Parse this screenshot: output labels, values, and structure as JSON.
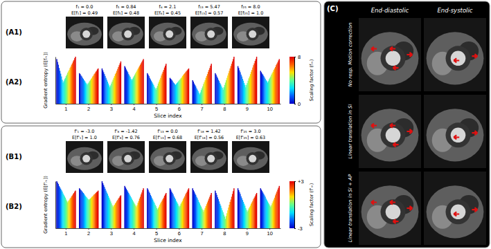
{
  "figure": {
    "panel_labels": [
      "(A1)",
      "(A2)",
      "(B1)",
      "(B2)",
      "(C)"
    ],
    "a1_images": [
      {
        "f": "f₁ = 0.0",
        "e": "E[f₁] = 0.49"
      },
      {
        "f": "f₅ = 0.84",
        "e": "E[f₅] = 0.48"
      },
      {
        "f": "f₆ = 2.1",
        "e": "E[f₆] = 0.45"
      },
      {
        "f": "f₁₃ = 5.47",
        "e": "E[f₁₃] = 0.57"
      },
      {
        "f": "f₂₅ = 8.0",
        "e": "E[f₂₅] = 1.0"
      }
    ],
    "b1_images": [
      {
        "f": "f'₁ = -3.0",
        "e": "E[f'₁] = 1.0"
      },
      {
        "f": "f'₈ = -1.42",
        "e": "E[f'₈] = 0.76"
      },
      {
        "f": "f'₁₃ = 0.0",
        "e": "E[f'₁₃] = 0.68"
      },
      {
        "f": "f'₁₈ = 1.42",
        "e": "E[f'₁₈] = 0.56"
      },
      {
        "f": "f'₂₅ = 3.0",
        "e": "E[f'₂₅] = 0.63"
      }
    ],
    "c": {
      "columns": [
        "End-diastolic",
        "End-systolic"
      ],
      "rows": [
        "No resp. Motion correction",
        "Linear translation in SI",
        "Linear translation in SI + AP"
      ]
    }
  },
  "chart_data": [
    {
      "type": "bar",
      "xlabel": "Slice index",
      "ylabel": "Gradient entropy (E[fₘ])",
      "categories": [
        1,
        2,
        3,
        4,
        5,
        6,
        7,
        8,
        9,
        10
      ],
      "ylim": [
        0,
        1
      ],
      "tick_labels": "x",
      "scaling_factors": [
        0,
        0.33,
        0.67,
        1,
        1.33,
        1.67,
        2,
        2.33,
        2.67,
        3,
        3.33,
        3.67,
        4,
        4.33,
        4.67,
        5,
        5.33,
        5.67,
        6,
        6.33,
        6.67,
        7,
        7.33,
        7.67,
        8
      ],
      "values": [
        [
          0.95,
          0.89,
          0.83,
          0.76,
          0.7,
          0.64,
          0.58,
          0.51,
          0.45,
          0.48,
          0.52,
          0.55,
          0.59,
          0.62,
          0.66,
          0.69,
          0.72,
          0.76,
          0.79,
          0.83,
          0.86,
          0.9,
          0.93,
          0.97,
          1.0
        ],
        [
          0.65,
          0.63,
          0.6,
          0.58,
          0.55,
          0.53,
          0.5,
          0.48,
          0.45,
          0.43,
          0.4,
          0.43,
          0.45,
          0.48,
          0.5,
          0.53,
          0.55,
          0.58,
          0.6,
          0.63,
          0.65,
          0.68,
          0.7,
          0.73,
          0.75
        ],
        [
          0.75,
          0.71,
          0.67,
          0.63,
          0.59,
          0.55,
          0.51,
          0.47,
          0.43,
          0.39,
          0.35,
          0.39,
          0.43,
          0.47,
          0.51,
          0.55,
          0.59,
          0.63,
          0.66,
          0.7,
          0.74,
          0.78,
          0.82,
          0.86,
          0.9
        ],
        [
          0.8,
          0.77,
          0.73,
          0.7,
          0.67,
          0.63,
          0.6,
          0.57,
          0.53,
          0.5,
          0.53,
          0.56,
          0.59,
          0.62,
          0.65,
          0.68,
          0.71,
          0.74,
          0.77,
          0.8,
          0.83,
          0.86,
          0.89,
          0.92,
          0.95
        ],
        [
          0.65,
          0.62,
          0.59,
          0.55,
          0.52,
          0.49,
          0.46,
          0.43,
          0.4,
          0.36,
          0.33,
          0.3,
          0.34,
          0.38,
          0.43,
          0.47,
          0.51,
          0.55,
          0.6,
          0.64,
          0.68,
          0.72,
          0.77,
          0.81,
          0.85
        ],
        [
          0.55,
          0.53,
          0.51,
          0.49,
          0.46,
          0.44,
          0.42,
          0.4,
          0.42,
          0.44,
          0.46,
          0.48,
          0.5,
          0.52,
          0.54,
          0.56,
          0.59,
          0.61,
          0.63,
          0.65,
          0.67,
          0.69,
          0.71,
          0.73,
          0.75
        ],
        [
          0.5,
          0.47,
          0.43,
          0.4,
          0.37,
          0.33,
          0.3,
          0.27,
          0.23,
          0.2,
          0.24,
          0.29,
          0.33,
          0.37,
          0.42,
          0.46,
          0.5,
          0.55,
          0.59,
          0.63,
          0.68,
          0.72,
          0.76,
          0.81,
          0.85
        ],
        [
          0.65,
          0.62,
          0.58,
          0.55,
          0.51,
          0.48,
          0.44,
          0.41,
          0.37,
          0.34,
          0.3,
          0.35,
          0.4,
          0.45,
          0.5,
          0.55,
          0.6,
          0.65,
          0.7,
          0.75,
          0.8,
          0.85,
          0.9,
          0.95,
          1.0
        ],
        [
          0.8,
          0.76,
          0.71,
          0.67,
          0.62,
          0.58,
          0.53,
          0.49,
          0.44,
          0.4,
          0.35,
          0.4,
          0.44,
          0.49,
          0.54,
          0.58,
          0.63,
          0.68,
          0.72,
          0.77,
          0.82,
          0.86,
          0.91,
          0.95,
          1.0
        ],
        [
          0.7,
          0.67,
          0.64,
          0.62,
          0.59,
          0.56,
          0.53,
          0.5,
          0.48,
          0.45,
          0.48,
          0.52,
          0.55,
          0.58,
          0.62,
          0.65,
          0.68,
          0.72,
          0.75,
          0.78,
          0.82,
          0.85,
          0.88,
          0.92,
          0.95
        ]
      ],
      "colorbar": {
        "label": "Scaling factor (fₘ)",
        "range": [
          0,
          8
        ],
        "ticks": [
          0,
          8
        ]
      }
    },
    {
      "type": "bar",
      "xlabel": "Slice index",
      "ylabel": "Gradient entropy (E[f'ₘ])",
      "categories": [
        1,
        2,
        3,
        4,
        5,
        6,
        7,
        8,
        9,
        10
      ],
      "ylim": [
        0,
        1
      ],
      "tick_labels": "x",
      "scaling_factors": [
        -3,
        -2.75,
        -2.5,
        -2.25,
        -2,
        -1.75,
        -1.5,
        -1.25,
        -1,
        -0.75,
        -0.5,
        -0.25,
        0,
        0.25,
        0.5,
        0.75,
        1,
        1.25,
        1.5,
        1.75,
        2,
        2.25,
        2.5,
        2.75,
        3
      ],
      "values": [
        [
          1.0,
          0.97,
          0.94,
          0.9,
          0.87,
          0.84,
          0.81,
          0.78,
          0.74,
          0.71,
          0.68,
          0.65,
          0.61,
          0.58,
          0.55,
          0.58,
          0.6,
          0.63,
          0.65,
          0.68,
          0.7,
          0.73,
          0.75,
          0.78,
          0.8
        ],
        [
          0.85,
          0.83,
          0.81,
          0.79,
          0.77,
          0.75,
          0.73,
          0.7,
          0.68,
          0.66,
          0.64,
          0.62,
          0.6,
          0.62,
          0.63,
          0.65,
          0.67,
          0.68,
          0.7,
          0.72,
          0.73,
          0.75,
          0.77,
          0.78,
          0.8
        ],
        [
          1.0,
          0.96,
          0.92,
          0.88,
          0.84,
          0.8,
          0.76,
          0.73,
          0.69,
          0.65,
          0.61,
          0.57,
          0.53,
          0.49,
          0.45,
          0.48,
          0.5,
          0.53,
          0.55,
          0.58,
          0.6,
          0.63,
          0.65,
          0.68,
          0.7
        ],
        [
          0.9,
          0.87,
          0.84,
          0.81,
          0.78,
          0.75,
          0.72,
          0.69,
          0.66,
          0.63,
          0.6,
          0.57,
          0.54,
          0.51,
          0.48,
          0.45,
          0.49,
          0.54,
          0.58,
          0.63,
          0.67,
          0.72,
          0.76,
          0.81,
          0.85
        ],
        [
          0.85,
          0.82,
          0.78,
          0.75,
          0.71,
          0.68,
          0.64,
          0.61,
          0.57,
          0.54,
          0.5,
          0.47,
          0.43,
          0.4,
          0.43,
          0.46,
          0.5,
          0.53,
          0.56,
          0.59,
          0.62,
          0.65,
          0.69,
          0.72,
          0.75
        ],
        [
          0.85,
          0.82,
          0.78,
          0.75,
          0.72,
          0.68,
          0.65,
          0.62,
          0.58,
          0.55,
          0.52,
          0.48,
          0.45,
          0.48,
          0.52,
          0.55,
          0.58,
          0.62,
          0.65,
          0.68,
          0.72,
          0.75,
          0.78,
          0.82,
          0.85
        ],
        [
          0.85,
          0.81,
          0.78,
          0.74,
          0.71,
          0.67,
          0.64,
          0.6,
          0.56,
          0.53,
          0.49,
          0.46,
          0.42,
          0.39,
          0.35,
          0.39,
          0.43,
          0.47,
          0.51,
          0.55,
          0.59,
          0.63,
          0.67,
          0.71,
          0.75
        ],
        [
          0.8,
          0.75,
          0.71,
          0.66,
          0.62,
          0.57,
          0.52,
          0.48,
          0.43,
          0.38,
          0.34,
          0.29,
          0.25,
          0.2,
          0.26,
          0.32,
          0.38,
          0.44,
          0.5,
          0.56,
          0.61,
          0.67,
          0.73,
          0.79,
          0.85
        ],
        [
          0.85,
          0.81,
          0.77,
          0.73,
          0.68,
          0.64,
          0.6,
          0.56,
          0.52,
          0.48,
          0.43,
          0.39,
          0.35,
          0.38,
          0.42,
          0.45,
          0.48,
          0.52,
          0.55,
          0.58,
          0.62,
          0.65,
          0.68,
          0.72,
          0.75
        ],
        [
          0.85,
          0.82,
          0.79,
          0.76,
          0.73,
          0.7,
          0.67,
          0.63,
          0.6,
          0.57,
          0.54,
          0.51,
          0.48,
          0.45,
          0.49,
          0.53,
          0.57,
          0.61,
          0.65,
          0.7,
          0.74,
          0.78,
          0.82,
          0.86,
          0.9
        ]
      ],
      "colorbar": {
        "label": "Scaling factor (f'ₘ)",
        "range": [
          -3,
          3
        ],
        "ticks": [
          {
            "value": 3,
            "label": "+3"
          },
          {
            "value": -3,
            "label": "-3"
          }
        ]
      }
    }
  ]
}
